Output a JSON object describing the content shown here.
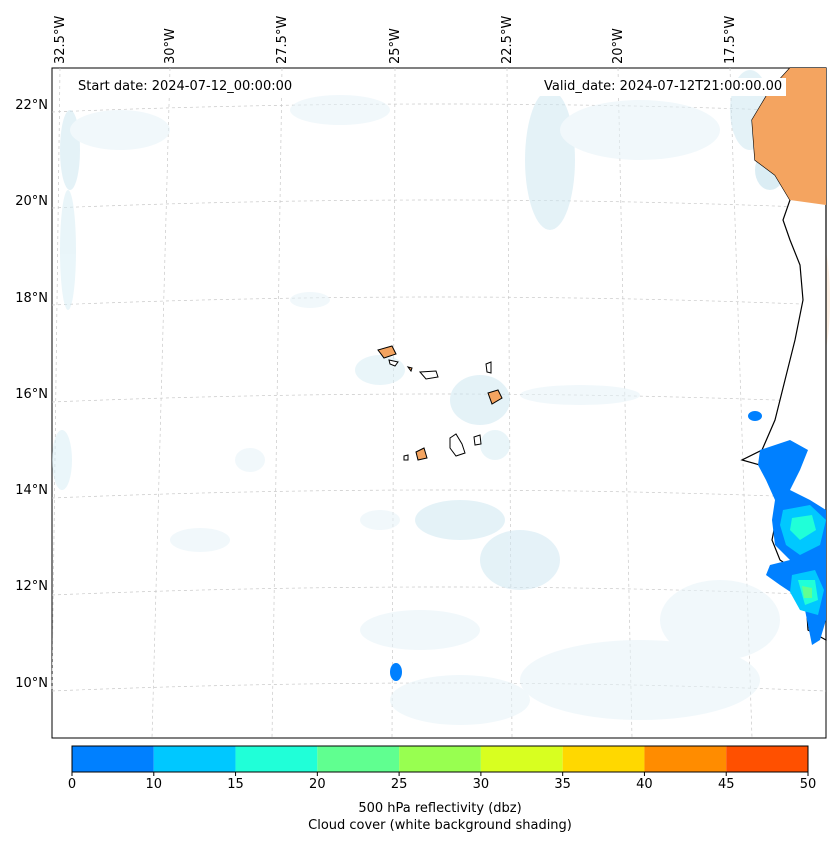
{
  "map": {
    "start_date": "Start date: 2024-07-12_00:00:00",
    "valid_date": "Valid_date: 2024-07-12T21:00:00.00",
    "lon_labels": [
      "32.5°W",
      "30°W",
      "27.5°W",
      "25°W",
      "22.5°W",
      "20°W",
      "17.5°W"
    ],
    "lat_labels": [
      "22°N",
      "20°N",
      "18°N",
      "16°N",
      "14°N",
      "12°N",
      "10°N"
    ]
  },
  "colorbar": {
    "ticks": [
      "0",
      "10",
      "15",
      "20",
      "25",
      "30",
      "35",
      "40",
      "45",
      "50"
    ],
    "colors": [
      "#0080ff",
      "#00c8ff",
      "#20ffd8",
      "#60ff90",
      "#98ff50",
      "#d8ff20",
      "#ffd800",
      "#ff8c00",
      "#ff5000"
    ],
    "caption_line1": "500 hPa reflectivity (dbz)",
    "caption_line2": "Cloud cover (white background shading)"
  },
  "colors": {
    "land": "#f4a460",
    "cloud": "#d6ecf3",
    "coast": "#000000"
  }
}
